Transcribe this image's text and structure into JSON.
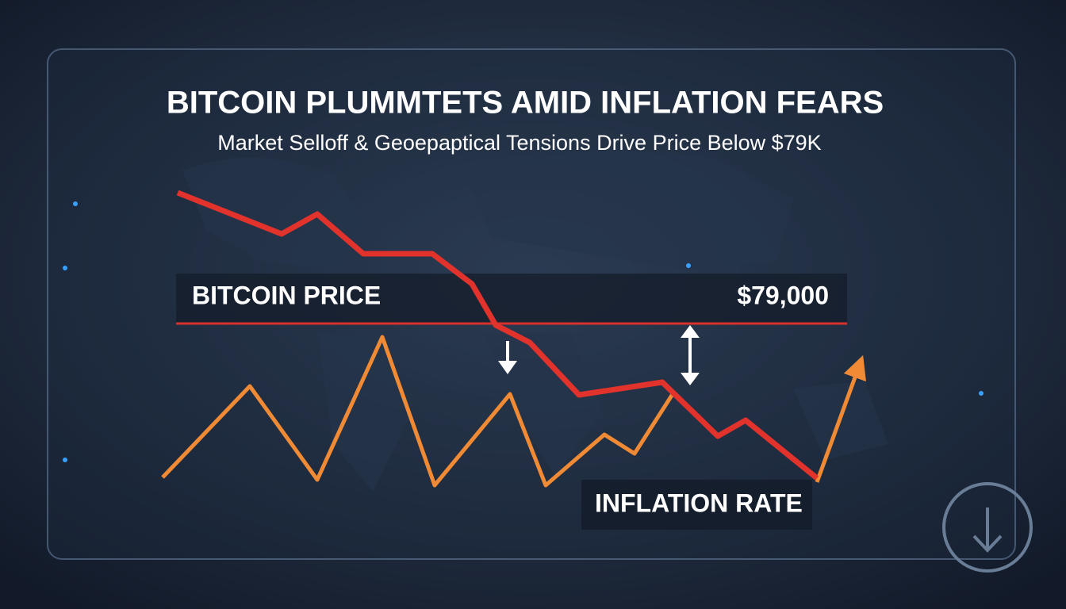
{
  "header": {
    "title": "BITCOIN PLUMMTETS AMID INFLATION FEARS",
    "subtitle": "Market Selloff & Geoepaptical Tensions Drive Price Below $79K"
  },
  "labels": {
    "bitcoin_price": "BITCOIN PRICE",
    "price_value": "$79,000",
    "inflation_rate": "INFLATION RATE"
  }
}
